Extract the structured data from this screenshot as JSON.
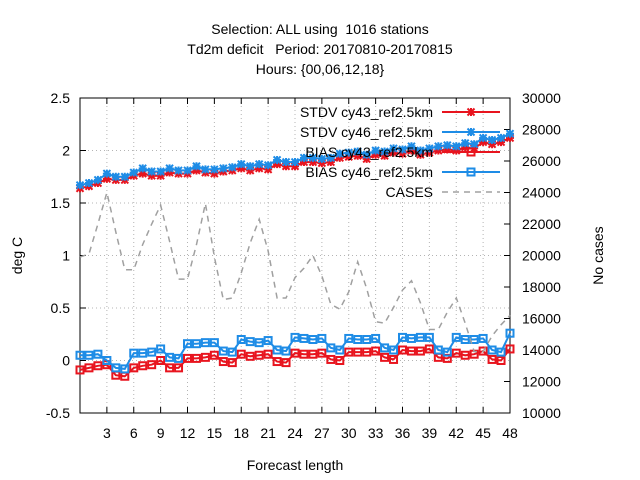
{
  "title": {
    "line1": "Selection: ALL using  1016 stations",
    "line2": "Td2m deficit   Period: 20170810-20170815",
    "line3": "Hours: {00,06,12,18}"
  },
  "chart_data": {
    "type": "line",
    "xlabel": "Forecast length",
    "ylabel": "deg C",
    "y2label": "No cases",
    "xlim": [
      0,
      48
    ],
    "ylim": [
      -0.5,
      2.5
    ],
    "y2lim": [
      10000,
      30000
    ],
    "grid": true,
    "legend_position": "top-right",
    "xticks": [
      "3",
      "6",
      "9",
      "12",
      "15",
      "18",
      "21",
      "24",
      "27",
      "30",
      "33",
      "36",
      "39",
      "42",
      "45",
      "48"
    ],
    "yticks": [
      "-0.5",
      "0",
      "0.5",
      "1",
      "1.5",
      "2",
      "2.5"
    ],
    "y2ticks": [
      "10000",
      "12000",
      "14000",
      "16000",
      "18000",
      "20000",
      "22000",
      "24000",
      "26000",
      "28000",
      "30000"
    ],
    "x": [
      0,
      1,
      2,
      3,
      4,
      5,
      6,
      7,
      8,
      9,
      10,
      11,
      12,
      13,
      14,
      15,
      16,
      17,
      18,
      19,
      20,
      21,
      22,
      23,
      24,
      25,
      26,
      27,
      28,
      29,
      30,
      31,
      32,
      33,
      34,
      35,
      36,
      37,
      38,
      39,
      40,
      41,
      42,
      43,
      44,
      45,
      46,
      47,
      48
    ],
    "series": [
      {
        "name": "STDV cy43_ref2.5km",
        "color": "#e8141e",
        "marker": "x",
        "axis": "y1",
        "dash": false,
        "values": [
          1.64,
          1.66,
          1.69,
          1.73,
          1.72,
          1.72,
          1.76,
          1.78,
          1.76,
          1.76,
          1.79,
          1.78,
          1.78,
          1.81,
          1.79,
          1.78,
          1.8,
          1.81,
          1.83,
          1.81,
          1.83,
          1.82,
          1.87,
          1.85,
          1.85,
          1.89,
          1.89,
          1.88,
          1.89,
          1.93,
          1.94,
          1.95,
          1.92,
          1.96,
          1.95,
          1.98,
          1.97,
          2.0,
          1.96,
          1.98,
          2.0,
          2.01,
          2.0,
          2.03,
          2.02,
          2.08,
          2.06,
          2.08,
          2.12
        ]
      },
      {
        "name": "STDV cy46_ref2.5km",
        "color": "#1e8ce6",
        "marker": "x",
        "axis": "y1",
        "dash": false,
        "values": [
          1.67,
          1.69,
          1.72,
          1.78,
          1.75,
          1.75,
          1.79,
          1.83,
          1.8,
          1.8,
          1.83,
          1.81,
          1.81,
          1.85,
          1.82,
          1.82,
          1.83,
          1.84,
          1.87,
          1.85,
          1.87,
          1.86,
          1.91,
          1.89,
          1.89,
          1.93,
          1.93,
          1.92,
          1.93,
          1.97,
          1.98,
          1.99,
          1.96,
          2.0,
          1.99,
          2.02,
          2.01,
          2.04,
          2.0,
          2.02,
          2.04,
          2.05,
          2.04,
          2.07,
          2.06,
          2.12,
          2.1,
          2.12,
          2.16
        ]
      },
      {
        "name": "BIAS cy43_ref2.5km",
        "color": "#e8141e",
        "marker": "square",
        "axis": "y1",
        "dash": false,
        "values": [
          -0.09,
          -0.07,
          -0.05,
          -0.04,
          -0.14,
          -0.15,
          -0.07,
          -0.05,
          -0.04,
          0.0,
          -0.07,
          -0.07,
          0.02,
          0.02,
          0.03,
          0.05,
          -0.01,
          -0.02,
          0.06,
          0.04,
          0.05,
          0.06,
          -0.01,
          -0.02,
          0.07,
          0.06,
          0.06,
          0.07,
          0.01,
          0.0,
          0.08,
          0.08,
          0.08,
          0.09,
          0.03,
          0.01,
          0.1,
          0.09,
          0.09,
          0.11,
          0.03,
          0.02,
          0.07,
          0.05,
          0.06,
          0.09,
          0.01,
          0.0,
          0.11
        ]
      },
      {
        "name": "BIAS cy46_ref2.5km",
        "color": "#1e8ce6",
        "marker": "square",
        "axis": "y1",
        "dash": false,
        "values": [
          0.05,
          0.05,
          0.06,
          0.0,
          -0.07,
          -0.08,
          0.07,
          0.07,
          0.08,
          0.11,
          0.03,
          0.02,
          0.16,
          0.16,
          0.17,
          0.17,
          0.09,
          0.08,
          0.2,
          0.18,
          0.17,
          0.19,
          0.1,
          0.09,
          0.22,
          0.21,
          0.2,
          0.21,
          0.12,
          0.1,
          0.21,
          0.2,
          0.2,
          0.21,
          0.12,
          0.1,
          0.22,
          0.21,
          0.22,
          0.22,
          0.1,
          0.08,
          0.22,
          0.2,
          0.2,
          0.21,
          0.1,
          0.08,
          0.26
        ]
      },
      {
        "name": "CASES",
        "color": "#a0a0a0",
        "marker": "none",
        "axis": "y2",
        "dash": true,
        "values": [
          19900,
          20100,
          22000,
          24000,
          21500,
          19100,
          19100,
          20700,
          22000,
          23200,
          20900,
          18500,
          18500,
          20700,
          23300,
          19900,
          17200,
          17300,
          18900,
          20800,
          22300,
          20300,
          17300,
          17300,
          18600,
          19200,
          20000,
          18700,
          16900,
          16600,
          17700,
          19600,
          17900,
          15800,
          15700,
          16700,
          17800,
          18400,
          17000,
          15300,
          15300,
          16400,
          17300,
          15700,
          13900,
          13900,
          14900,
          15600,
          16200
        ]
      }
    ]
  }
}
